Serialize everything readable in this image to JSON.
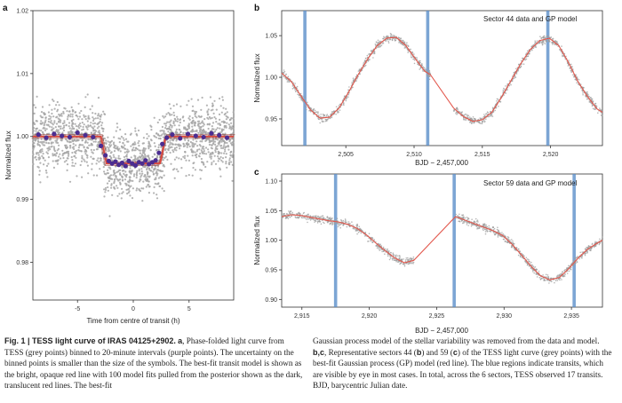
{
  "chart_data": [
    {
      "panel": "a",
      "type": "scatter",
      "xlabel": "Time from centre of transit (h)",
      "ylabel": "Normalized flux",
      "xlim": [
        -9,
        9
      ],
      "ylim": [
        0.974,
        1.02
      ],
      "xticks": [
        -5,
        0,
        5
      ],
      "yticks": [
        0.98,
        0.99,
        1.0,
        1.01,
        1.02
      ],
      "ytick_labels": [
        "0.98",
        "0.99",
        "1.00",
        "1.01",
        "1.02"
      ],
      "series": [
        {
          "style": "grey points",
          "color": "#a6a6a6",
          "scatter_sd": 0.0045,
          "count": 1800
        },
        {
          "style": "purple points",
          "color": "#4b2d91",
          "x": [
            -8.5,
            -7.8,
            -7.1,
            -6.4,
            -5.7,
            -5.0,
            -4.3,
            -3.6,
            -2.9,
            -2.5,
            -2.2,
            -1.9,
            -1.6,
            -1.3,
            -1.0,
            -0.7,
            -0.4,
            -0.1,
            0.2,
            0.5,
            0.8,
            1.1,
            1.4,
            1.7,
            2.0,
            2.3,
            2.6,
            3.0,
            3.5,
            4.2,
            4.9,
            5.6,
            6.3,
            7.0,
            7.7,
            8.4
          ],
          "y": [
            1.0003,
            0.9998,
            1.0004,
            1.0001,
            0.9999,
            1.0006,
            1.0002,
            0.9999,
            0.9985,
            0.997,
            0.9961,
            0.9957,
            0.996,
            0.9955,
            0.9958,
            0.9953,
            0.9961,
            0.9957,
            0.9954,
            0.9959,
            0.9957,
            0.9962,
            0.9956,
            0.9959,
            0.9962,
            0.9974,
            0.9988,
            0.9998,
            1.0003,
            0.9997,
            1.0004,
            1.0001,
            0.9999,
            1.0005,
            1.0002,
            0.9998
          ]
        },
        {
          "style": "red transit model",
          "color": "#e0483c",
          "x": [
            -9,
            -2.9,
            -2.4,
            2.4,
            2.9,
            9
          ],
          "y": [
            1.0,
            1.0,
            0.9957,
            0.9957,
            1.0,
            1.0
          ]
        }
      ]
    },
    {
      "panel": "b",
      "type": "line",
      "annotation": "Sector 44 data and GP model",
      "xlabel": "BJD − 2,457,000",
      "ylabel": "Normalized flux",
      "xlim": [
        2500.3,
        2523.8
      ],
      "ylim": [
        0.918,
        1.08
      ],
      "xticks": [
        2505,
        2510,
        2515,
        2520
      ],
      "xtick_labels": [
        "2,505",
        "2,510",
        "2,515",
        "2,520"
      ],
      "yticks": [
        0.95,
        1.0,
        1.05
      ],
      "ytick_labels": [
        "0.95",
        "1.00",
        "1.05"
      ],
      "transits": [
        2502.0,
        2511.0,
        2519.8
      ],
      "gap": [
        2511.2,
        2512.9
      ],
      "model": {
        "x": [
          2500.3,
          2501.0,
          2501.7,
          2502.4,
          2503.1,
          2503.8,
          2504.5,
          2505.2,
          2505.9,
          2506.6,
          2507.3,
          2508.0,
          2508.7,
          2509.4,
          2510.1,
          2510.8,
          2511.2,
          2512.9,
          2513.6,
          2514.3,
          2515.0,
          2515.7,
          2516.4,
          2517.1,
          2517.8,
          2518.5,
          2519.2,
          2519.9,
          2520.6,
          2521.3,
          2522.0,
          2522.7,
          2523.4,
          2523.8
        ],
        "y": [
          1.005,
          0.995,
          0.978,
          0.961,
          0.951,
          0.952,
          0.963,
          0.982,
          1.003,
          1.022,
          1.038,
          1.047,
          1.048,
          1.038,
          1.022,
          1.007,
          1.003,
          0.963,
          0.953,
          0.947,
          0.949,
          0.958,
          0.976,
          0.996,
          1.016,
          1.033,
          1.044,
          1.047,
          1.038,
          1.018,
          0.995,
          0.977,
          0.962,
          0.958
        ]
      }
    },
    {
      "panel": "c",
      "type": "line",
      "annotation": "Sector 59 data and GP model",
      "xlabel": "",
      "ylabel": "Normalized flux",
      "xlim": [
        2913.5,
        2937.3
      ],
      "ylim": [
        0.887,
        1.112
      ],
      "xticks": [
        2915,
        2920,
        2925,
        2930,
        2935
      ],
      "xtick_labels": [
        "2,915",
        "2,920",
        "2,925",
        "2,930",
        "2,935"
      ],
      "yticks": [
        0.9,
        0.95,
        1.0,
        1.05,
        1.1
      ],
      "ytick_labels": [
        "0.90",
        "0.95",
        "1.00",
        "1.05",
        "1.10"
      ],
      "transits": [
        2917.5,
        2926.3,
        2935.2
      ],
      "gap": [
        2923.3,
        2926.4
      ],
      "model": {
        "x": [
          2913.5,
          2914.2,
          2914.9,
          2915.6,
          2916.3,
          2917.0,
          2917.7,
          2918.4,
          2919.1,
          2919.8,
          2920.5,
          2921.2,
          2921.9,
          2922.6,
          2923.3,
          2926.4,
          2927.1,
          2927.8,
          2928.5,
          2929.2,
          2929.9,
          2930.6,
          2931.3,
          2932.0,
          2932.7,
          2933.4,
          2934.1,
          2934.8,
          2935.5,
          2936.2,
          2936.9,
          2937.3
        ],
        "y": [
          1.04,
          1.043,
          1.042,
          1.039,
          1.036,
          1.033,
          1.031,
          1.027,
          1.02,
          1.009,
          0.995,
          0.982,
          0.97,
          0.962,
          0.966,
          1.04,
          1.034,
          1.028,
          1.022,
          1.016,
          1.008,
          0.993,
          0.975,
          0.956,
          0.94,
          0.933,
          0.937,
          0.952,
          0.97,
          0.985,
          0.995,
          1.0
        ]
      }
    }
  ],
  "labels": {
    "a": "a",
    "b": "b",
    "c": "c",
    "c_xlabel": "BJD − 2,457,000"
  },
  "caption": {
    "left_bold": "Fig. 1 | TESS light curve of IRAS 04125+2902.",
    "left_bold_a": "a",
    "left_text": ", Phase-folded light curve from TESS (grey points) binned to 20-minute intervals (purple points). The uncertainty on the binned points is smaller than the size of the symbols. The best-fit transit model is shown as the bright, opaque red line with 100 model fits pulled from the posterior shown as the dark, translucent red lines. The best-fit",
    "right_text_1": "Gaussian process model of the stellar variability was removed from the data and model. ",
    "right_bold_bc": "b",
    "right_comma": ",",
    "right_bold_c": "c",
    "right_text_2": ", Representative sectors 44 (",
    "right_bold_b2": "b",
    "right_text_3": ") and 59 (",
    "right_bold_c2": "c",
    "right_text_4": ") of the TESS light curve (grey points) with the best-fit Gaussian process (GP) model (red line). The blue regions indicate transits, which are visible by eye in most cases. In total, across the 6 sectors, TESS observed 17 transits. BJD, barycentric Julian date."
  }
}
